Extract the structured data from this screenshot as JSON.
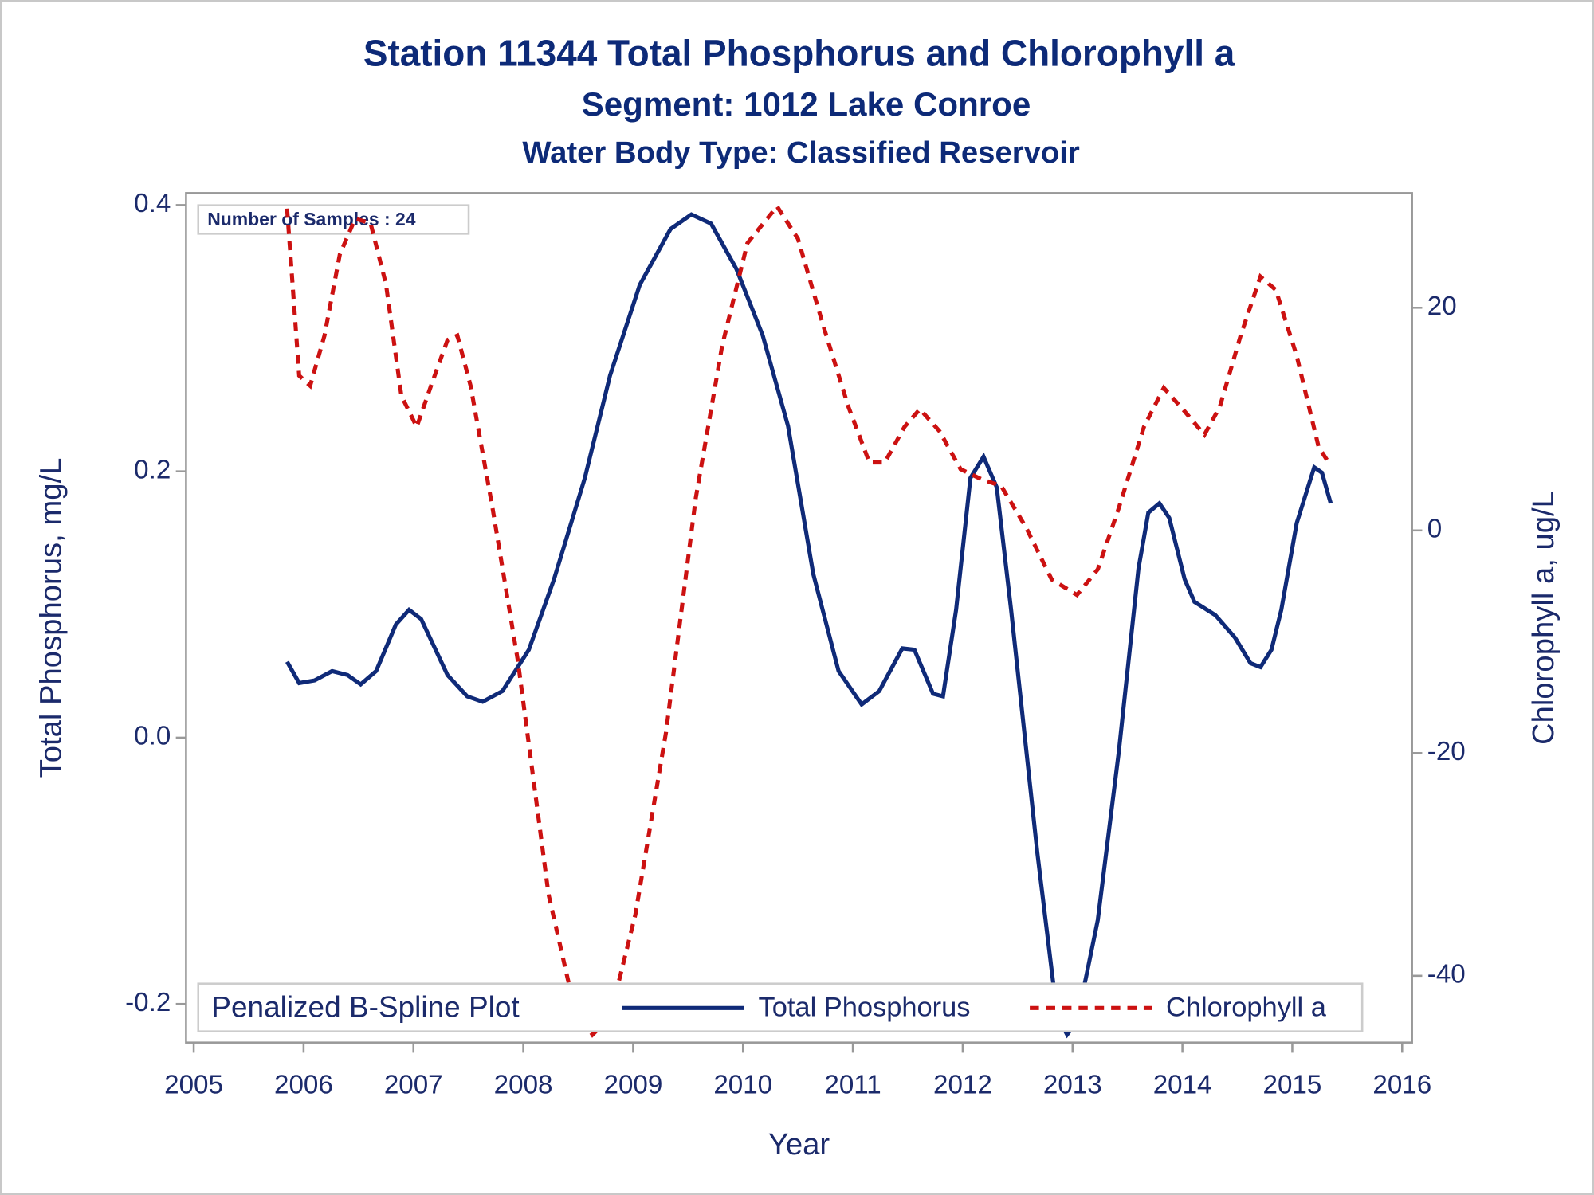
{
  "chart_data": {
    "type": "line",
    "title": "Station 11344  Total Phosphorus and Chlorophyll a",
    "subtitle": "Segment: 1012  Lake Conroe",
    "subtitle2": "Water Body Type: Classified Reservoir",
    "annotation": "Number of Samples : 24",
    "xlabel": "Year",
    "ylabel": "Total Phosphorus, mg/L",
    "y2label": "Chlorophyll a, ug/L",
    "legend_title": "Penalized B-Spline Plot",
    "legend": "bottom",
    "xlim": [
      2004.93,
      2016.09
    ],
    "xticks": [
      2005,
      2006,
      2007,
      2008,
      2009,
      2010,
      2011,
      2012,
      2013,
      2014,
      2015,
      2016
    ],
    "ylim": [
      -0.229,
      0.409
    ],
    "yticks": [
      {
        "value": -0.2,
        "label": "-0.2"
      },
      {
        "value": 0,
        "label": "0.0"
      },
      0.2,
      0.4
    ],
    "y2lim": [
      -46.0,
      30.3
    ],
    "y2ticks": [
      -40,
      -20,
      0,
      20
    ],
    "series": [
      {
        "name": "Total Phosphorus",
        "color": "#0f2a78",
        "dash": "solid",
        "x": [
          2005.85,
          2005.96,
          2006.1,
          2006.26,
          2006.4,
          2006.52,
          2006.66,
          2006.84,
          2006.96,
          2007.07,
          2007.31,
          2007.49,
          2007.63,
          2007.81,
          2008.05,
          2008.28,
          2008.56,
          2008.79,
          2009.06,
          2009.34,
          2009.53,
          2009.71,
          2009.94,
          2010.18,
          2010.41,
          2010.64,
          2010.87,
          2011.08,
          2011.24,
          2011.45,
          2011.56,
          2011.73,
          2011.82,
          2011.94,
          2012.07,
          2012.19,
          2012.31,
          2012.44,
          2012.68,
          2012.86,
          2012.95,
          2013.04,
          2013.23,
          2013.42,
          2013.6,
          2013.69,
          2013.79,
          2013.88,
          2014.02,
          2014.11,
          2014.3,
          2014.48,
          2014.62,
          2014.71,
          2014.81,
          2014.9,
          2015.04,
          2015.2,
          2015.27,
          2015.35
        ],
        "values": [
          0.057,
          0.041,
          0.043,
          0.05,
          0.047,
          0.04,
          0.05,
          0.085,
          0.096,
          0.089,
          0.047,
          0.031,
          0.027,
          0.035,
          0.066,
          0.119,
          0.195,
          0.272,
          0.34,
          0.382,
          0.393,
          0.386,
          0.352,
          0.302,
          0.234,
          0.123,
          0.05,
          0.025,
          0.035,
          0.067,
          0.066,
          0.033,
          0.031,
          0.096,
          0.195,
          0.211,
          0.188,
          0.096,
          -0.087,
          -0.209,
          -0.223,
          -0.213,
          -0.137,
          -0.011,
          0.127,
          0.169,
          0.176,
          0.165,
          0.119,
          0.102,
          0.092,
          0.075,
          0.056,
          0.053,
          0.066,
          0.096,
          0.161,
          0.203,
          0.199,
          0.176
        ]
      },
      {
        "name": "Chlorophyll a",
        "color": "#cc1111",
        "dash": "dashed",
        "axis": "y2",
        "x": [
          2005.85,
          2005.96,
          2006.06,
          2006.19,
          2006.33,
          2006.47,
          2006.61,
          2006.75,
          2006.89,
          2007.03,
          2007.16,
          2007.31,
          2007.4,
          2007.52,
          2007.72,
          2007.95,
          2008.23,
          2008.46,
          2008.63,
          2008.79,
          2009.02,
          2009.3,
          2009.57,
          2009.81,
          2010.04,
          2010.31,
          2010.5,
          2010.73,
          2010.96,
          2011.15,
          2011.29,
          2011.47,
          2011.61,
          2011.79,
          2011.98,
          2012.17,
          2012.35,
          2012.58,
          2012.81,
          2013.04,
          2013.23,
          2013.42,
          2013.65,
          2013.83,
          2014.02,
          2014.2,
          2014.34,
          2014.53,
          2014.71,
          2014.85,
          2015.04,
          2015.24,
          2015.35
        ],
        "values": [
          28.9,
          13.9,
          13.0,
          17.5,
          24.8,
          28.0,
          27.6,
          22.1,
          12.1,
          9.3,
          13.0,
          17.1,
          17.5,
          13.0,
          2.0,
          -11.7,
          -32.7,
          -42.7,
          -45.3,
          -43.7,
          -34.5,
          -18.1,
          2.9,
          16.6,
          25.8,
          29.1,
          26.2,
          18.4,
          11.1,
          6.1,
          6.1,
          9.3,
          10.9,
          8.9,
          5.5,
          4.6,
          4.0,
          0.2,
          -4.4,
          -5.8,
          -3.5,
          2.0,
          9.3,
          12.8,
          10.7,
          8.6,
          11.1,
          17.5,
          22.8,
          21.6,
          15.7,
          7.5,
          5.8
        ]
      }
    ]
  }
}
